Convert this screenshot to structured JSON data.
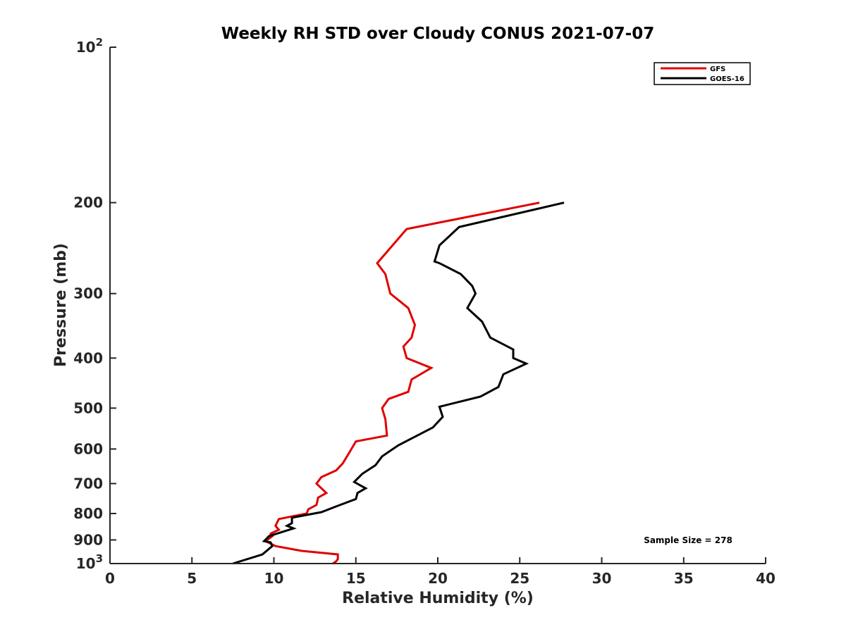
{
  "chart_data": {
    "type": "line",
    "title": "Weekly RH STD over Cloudy CONUS 2021-07-07",
    "xlabel": "Relative Humidity (%)",
    "ylabel": "Pressure (mb)",
    "xlim": [
      0,
      40
    ],
    "ylim": [
      100,
      1000
    ],
    "y_scale": "log",
    "y_reversed": true,
    "grid": false,
    "legend_position": "top-right",
    "x_ticks": [
      "0",
      "5",
      "10",
      "15",
      "20",
      "25",
      "30",
      "35",
      "40"
    ],
    "y_ticks": [
      {
        "value": 100,
        "base": "10",
        "exp": "2"
      },
      {
        "value": 200,
        "label": "200"
      },
      {
        "value": 300,
        "label": "300"
      },
      {
        "value": 400,
        "label": "400"
      },
      {
        "value": 500,
        "label": "500"
      },
      {
        "value": 600,
        "label": "600"
      },
      {
        "value": 700,
        "label": "700"
      },
      {
        "value": 800,
        "label": "800"
      },
      {
        "value": 900,
        "label": "900"
      },
      {
        "value": 1000,
        "base": "10",
        "exp": "3"
      }
    ],
    "annotation": "Sample Size = 278",
    "series": [
      {
        "name": "GFS",
        "color": "#e00000",
        "points": [
          [
            26.2,
            200
          ],
          [
            18.1,
            225
          ],
          [
            16.3,
            262
          ],
          [
            16.8,
            275
          ],
          [
            17.1,
            300
          ],
          [
            18.2,
            320
          ],
          [
            18.6,
            345
          ],
          [
            18.4,
            365
          ],
          [
            17.9,
            380
          ],
          [
            18.1,
            400
          ],
          [
            19.6,
            418
          ],
          [
            18.4,
            440
          ],
          [
            18.2,
            465
          ],
          [
            17.0,
            480
          ],
          [
            16.6,
            500
          ],
          [
            16.8,
            525
          ],
          [
            16.9,
            565
          ],
          [
            15.0,
            580
          ],
          [
            14.6,
            610
          ],
          [
            14.2,
            640
          ],
          [
            13.8,
            660
          ],
          [
            12.9,
            680
          ],
          [
            12.6,
            700
          ],
          [
            13.2,
            730
          ],
          [
            12.7,
            745
          ],
          [
            12.6,
            770
          ],
          [
            12.1,
            785
          ],
          [
            12.0,
            800
          ],
          [
            10.3,
            820
          ],
          [
            10.1,
            845
          ],
          [
            10.3,
            860
          ],
          [
            9.8,
            875
          ],
          [
            9.8,
            880
          ],
          [
            9.9,
            885
          ],
          [
            9.5,
            905
          ],
          [
            10.1,
            925
          ],
          [
            11.7,
            945
          ],
          [
            13.9,
            960
          ],
          [
            13.9,
            980
          ],
          [
            13.8,
            990
          ],
          [
            13.6,
            1000
          ]
        ]
      },
      {
        "name": "GOES-16",
        "color": "#000000",
        "points": [
          [
            27.7,
            200
          ],
          [
            21.3,
            223
          ],
          [
            20.1,
            242
          ],
          [
            19.8,
            260
          ],
          [
            20.1,
            262
          ],
          [
            21.4,
            275
          ],
          [
            22.1,
            290
          ],
          [
            22.3,
            300
          ],
          [
            21.8,
            320
          ],
          [
            22.7,
            340
          ],
          [
            23.2,
            365
          ],
          [
            24.6,
            385
          ],
          [
            24.6,
            400
          ],
          [
            25.4,
            410
          ],
          [
            24.0,
            430
          ],
          [
            23.7,
            455
          ],
          [
            22.6,
            475
          ],
          [
            20.1,
            497
          ],
          [
            20.3,
            520
          ],
          [
            19.7,
            545
          ],
          [
            17.6,
            590
          ],
          [
            16.6,
            620
          ],
          [
            16.2,
            645
          ],
          [
            15.4,
            670
          ],
          [
            14.9,
            695
          ],
          [
            15.6,
            715
          ],
          [
            15.1,
            730
          ],
          [
            15.0,
            750
          ],
          [
            13.8,
            775
          ],
          [
            12.9,
            795
          ],
          [
            11.1,
            815
          ],
          [
            11.1,
            835
          ],
          [
            10.8,
            845
          ],
          [
            11.2,
            855
          ],
          [
            9.7,
            885
          ],
          [
            9.4,
            905
          ],
          [
            9.8,
            910
          ],
          [
            9.9,
            925
          ],
          [
            9.3,
            960
          ],
          [
            7.5,
            1000
          ]
        ]
      }
    ]
  }
}
